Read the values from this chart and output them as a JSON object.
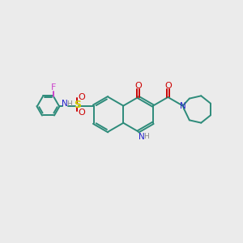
{
  "bg_color": "#ebebeb",
  "bond_color": "#2d8b7a",
  "atom_colors": {
    "N": "#2222cc",
    "O": "#cc0000",
    "S": "#cccc00",
    "F": "#cc44cc",
    "H_label": "#888888"
  },
  "figsize": [
    3.0,
    3.0
  ],
  "dpi": 100
}
